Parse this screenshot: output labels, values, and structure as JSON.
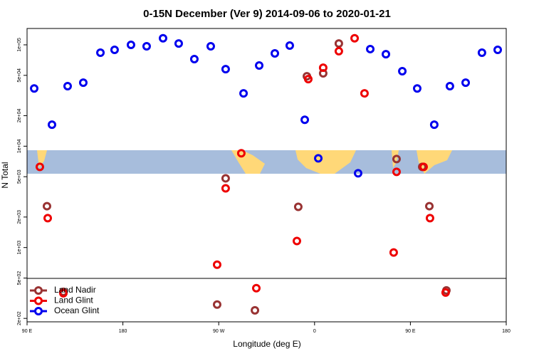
{
  "chart_data": {
    "type": "scatter",
    "title": "0-15N December (Ver 9)   2014-09-06 to 2020-01-21",
    "x_label": "Longitude (deg E)",
    "y_label": "N Total",
    "log_y": true,
    "legend": "lower left",
    "xlim": [
      90,
      540
    ],
    "xticks": [
      {
        "value": 90,
        "label": "90 E"
      },
      {
        "value": 180,
        "label": "180"
      },
      {
        "value": 270,
        "label": "90 W"
      },
      {
        "value": 360,
        "label": "0"
      },
      {
        "value": 450,
        "label": "90 E"
      },
      {
        "value": 540,
        "label": "180"
      }
    ],
    "ylim": [
      185,
      145000
    ],
    "yticks": [
      {
        "value": 200,
        "label": "2e+02"
      },
      {
        "value": 500,
        "label": "5e+02"
      },
      {
        "value": 1000,
        "label": "1e+03"
      },
      {
        "value": 2000,
        "label": "2e+03"
      },
      {
        "value": 5000,
        "label": "5e+03"
      },
      {
        "value": 10000,
        "label": "1e+04"
      },
      {
        "value": 20000,
        "label": "2e+04"
      },
      {
        "value": 50000,
        "label": "5e+04"
      },
      {
        "value": 100000,
        "label": "1e+05"
      }
    ],
    "series": [
      {
        "name": "Land Nadir",
        "color": "#993333",
        "x": [
          108.7,
          124.1,
          268.5,
          276.5,
          304.0,
          344.7,
          352.8,
          368.1,
          382.8,
          437.0,
          461.1,
          467.8,
          483.8
        ],
        "values": [
          2560,
          366,
          274,
          4820,
          240,
          2520,
          49000,
          52300,
          103000,
          7470,
          6250,
          2560,
          378
        ]
      },
      {
        "name": "Land Glint",
        "color": "#ee0000",
        "x": [
          102.0,
          109.4,
          124.1,
          268.5,
          276.5,
          291.2,
          305.3,
          343.4,
          354.1,
          368.1,
          382.8,
          397.6,
          406.9,
          434.3,
          437.0,
          462.4,
          468.4,
          483.1
        ],
        "values": [
          6250,
          1950,
          354,
          678,
          3840,
          8510,
          397,
          1160,
          45900,
          59500,
          86500,
          116000,
          33200,
          893,
          5580,
          6250,
          1950,
          360
        ]
      },
      {
        "name": "Ocean Glint",
        "color": "#0000ee",
        "x": [
          96.7,
          113.4,
          128.1,
          142.8,
          158.9,
          172.2,
          187.6,
          202.3,
          217.7,
          232.4,
          247.1,
          262.5,
          276.5,
          293.3,
          308.0,
          322.7,
          336.7,
          350.8,
          363.5,
          400.9,
          412.3,
          427.0,
          442.4,
          456.4,
          472.4,
          487.1,
          501.9,
          517.2,
          532.0
        ],
        "values": [
          37100,
          16300,
          39100,
          42300,
          83700,
          89300,
          100000,
          96800,
          116000,
          103000,
          72300,
          96800,
          57600,
          33200,
          62500,
          82300,
          98400,
          18200,
          7590,
          5400,
          90800,
          80900,
          54900,
          37100,
          16300,
          39100,
          42300,
          83700,
          89300
        ]
      }
    ]
  }
}
